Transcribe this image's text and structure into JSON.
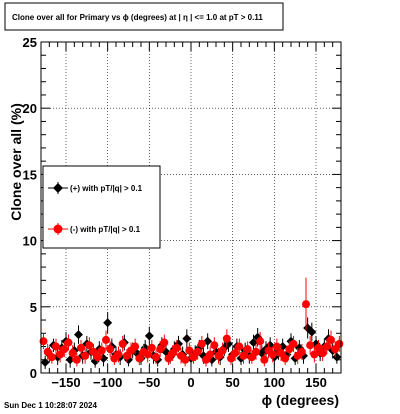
{
  "title": "Clone  over all for Primary vs ϕ (degrees) at |  η  | <= 1.0 at pT > 0.11",
  "footer": "Sun Dec  1 10:28:07 2024",
  "colors": {
    "series_pos": "#000000",
    "series_neg": "#ff0000",
    "grid": "#000000",
    "frame": "#000000"
  },
  "chart_data": {
    "type": "scatter",
    "title": "Clone  over all for Primary vs ϕ (degrees) at |  η  | <= 1.0 at pT > 0.11",
    "xlabel": "ϕ (degrees)",
    "ylabel": "Clone  over all (%)",
    "xlim": [
      -180,
      180
    ],
    "ylim": [
      0,
      25
    ],
    "xticks": [
      {
        "value": -150,
        "label": "−150"
      },
      {
        "value": -100,
        "label": "−100"
      },
      {
        "value": -50,
        "label": "−50"
      },
      {
        "value": 0,
        "label": "0"
      },
      {
        "value": 50,
        "label": "50"
      },
      {
        "value": 100,
        "label": "100"
      },
      {
        "value": 150,
        "label": "150"
      }
    ],
    "yticks": [
      {
        "value": 0,
        "label": "0"
      },
      {
        "value": 5,
        "label": "5"
      },
      {
        "value": 10,
        "label": "10"
      },
      {
        "value": 15,
        "label": "15"
      },
      {
        "value": 20,
        "label": "20"
      },
      {
        "value": 25,
        "label": "25"
      }
    ],
    "grid": true,
    "legend_position": "middle-left",
    "series": [
      {
        "name": "(+) with pT/|q| > 0.1",
        "color": "#000000",
        "marker": "diamond",
        "x": [
          -175,
          -170,
          -165,
          -160,
          -155,
          -150,
          -145,
          -140,
          -135,
          -130,
          -125,
          -120,
          -115,
          -110,
          -105,
          -100,
          -95,
          -90,
          -85,
          -80,
          -75,
          -70,
          -65,
          -60,
          -55,
          -50,
          -45,
          -40,
          -35,
          -30,
          -25,
          -20,
          -15,
          -10,
          -5,
          0,
          5,
          10,
          15,
          20,
          25,
          30,
          35,
          40,
          45,
          50,
          55,
          60,
          65,
          70,
          75,
          80,
          85,
          90,
          95,
          100,
          105,
          110,
          115,
          120,
          125,
          130,
          135,
          140,
          145,
          150,
          155,
          160,
          165,
          170,
          175
        ],
        "y": [
          0.8,
          1.4,
          2.1,
          1.2,
          1.9,
          2.4,
          1.0,
          1.7,
          2.9,
          1.3,
          2.2,
          1.6,
          0.9,
          1.8,
          1.1,
          3.8,
          2.0,
          1.4,
          1.2,
          2.3,
          1.0,
          1.7,
          1.5,
          1.1,
          1.9,
          2.8,
          1.3,
          1.0,
          2.1,
          1.6,
          1.2,
          1.8,
          2.2,
          1.4,
          2.6,
          1.1,
          1.5,
          1.9,
          1.3,
          2.4,
          1.0,
          1.6,
          1.2,
          1.9,
          2.2,
          1.4,
          2.0,
          1.1,
          1.7,
          1.3,
          2.3,
          2.7,
          1.5,
          1.8,
          2.1,
          1.2,
          1.6,
          2.0,
          1.4,
          2.4,
          1.1,
          1.9,
          1.3,
          3.4,
          3.1,
          2.2,
          1.5,
          2.0,
          2.6,
          1.7,
          1.2
        ],
        "err": [
          0.5,
          0.6,
          0.5,
          0.6,
          0.6,
          0.7,
          0.6,
          0.6,
          0.7,
          0.6,
          0.6,
          0.6,
          0.5,
          0.6,
          0.6,
          0.8,
          0.6,
          0.6,
          0.6,
          0.6,
          0.5,
          0.6,
          0.6,
          0.5,
          0.6,
          0.7,
          0.6,
          0.5,
          0.6,
          0.6,
          0.5,
          0.6,
          0.6,
          0.6,
          0.7,
          0.6,
          0.6,
          0.6,
          0.6,
          0.6,
          0.5,
          0.6,
          0.6,
          0.6,
          0.6,
          0.6,
          0.6,
          0.5,
          0.6,
          0.6,
          0.6,
          0.7,
          0.6,
          0.6,
          0.6,
          0.6,
          0.6,
          0.6,
          0.6,
          0.6,
          0.5,
          0.6,
          0.6,
          0.8,
          0.7,
          0.6,
          0.6,
          0.6,
          0.7,
          0.6,
          0.5
        ]
      },
      {
        "name": "(-) with pT/|q| > 0.1",
        "color": "#ff0000",
        "marker": "circle",
        "x": [
          -177,
          -172,
          -167,
          -162,
          -157,
          -152,
          -147,
          -142,
          -137,
          -132,
          -127,
          -122,
          -117,
          -112,
          -107,
          -102,
          -97,
          -92,
          -87,
          -82,
          -77,
          -72,
          -67,
          -62,
          -57,
          -52,
          -47,
          -42,
          -37,
          -32,
          -27,
          -22,
          -17,
          -12,
          -7,
          -2,
          3,
          8,
          13,
          18,
          23,
          28,
          33,
          38,
          43,
          48,
          53,
          58,
          63,
          68,
          73,
          78,
          83,
          88,
          93,
          98,
          103,
          108,
          113,
          118,
          123,
          128,
          133,
          138,
          143,
          148,
          153,
          158,
          163,
          168,
          173,
          178
        ],
        "y": [
          2.4,
          1.6,
          1.2,
          2.0,
          1.4,
          1.8,
          2.3,
          1.5,
          1.0,
          1.9,
          1.3,
          2.1,
          1.6,
          1.2,
          1.7,
          2.5,
          1.8,
          1.1,
          1.4,
          2.2,
          1.3,
          1.7,
          2.0,
          1.1,
          1.6,
          1.4,
          1.9,
          1.2,
          1.8,
          2.3,
          1.1,
          1.5,
          1.9,
          1.3,
          1.0,
          1.7,
          1.2,
          1.6,
          2.2,
          1.0,
          1.4,
          2.1,
          1.3,
          1.7,
          2.6,
          1.1,
          1.5,
          2.0,
          1.3,
          1.8,
          1.2,
          1.6,
          2.4,
          1.0,
          1.7,
          1.4,
          2.0,
          1.5,
          1.1,
          1.8,
          2.2,
          1.3,
          1.6,
          5.2,
          2.1,
          1.4,
          1.9,
          1.5,
          2.0,
          2.5,
          1.8,
          2.2
        ],
        "err": [
          0.6,
          0.6,
          0.5,
          0.6,
          0.6,
          0.6,
          0.6,
          0.6,
          0.5,
          0.6,
          0.6,
          0.6,
          0.6,
          0.5,
          0.6,
          0.7,
          0.6,
          0.5,
          0.6,
          0.6,
          0.5,
          0.6,
          0.6,
          0.5,
          0.6,
          0.6,
          0.6,
          0.5,
          0.6,
          0.6,
          0.5,
          0.6,
          0.6,
          0.6,
          0.5,
          0.6,
          0.5,
          0.6,
          0.6,
          0.5,
          0.6,
          0.6,
          0.6,
          0.6,
          0.7,
          0.5,
          0.6,
          0.6,
          0.6,
          0.6,
          0.5,
          0.6,
          0.7,
          0.5,
          0.6,
          0.6,
          0.6,
          0.6,
          0.5,
          0.6,
          0.6,
          0.6,
          0.6,
          2.0,
          0.7,
          0.6,
          0.6,
          0.6,
          0.6,
          0.7,
          0.6,
          0.6
        ]
      }
    ]
  }
}
